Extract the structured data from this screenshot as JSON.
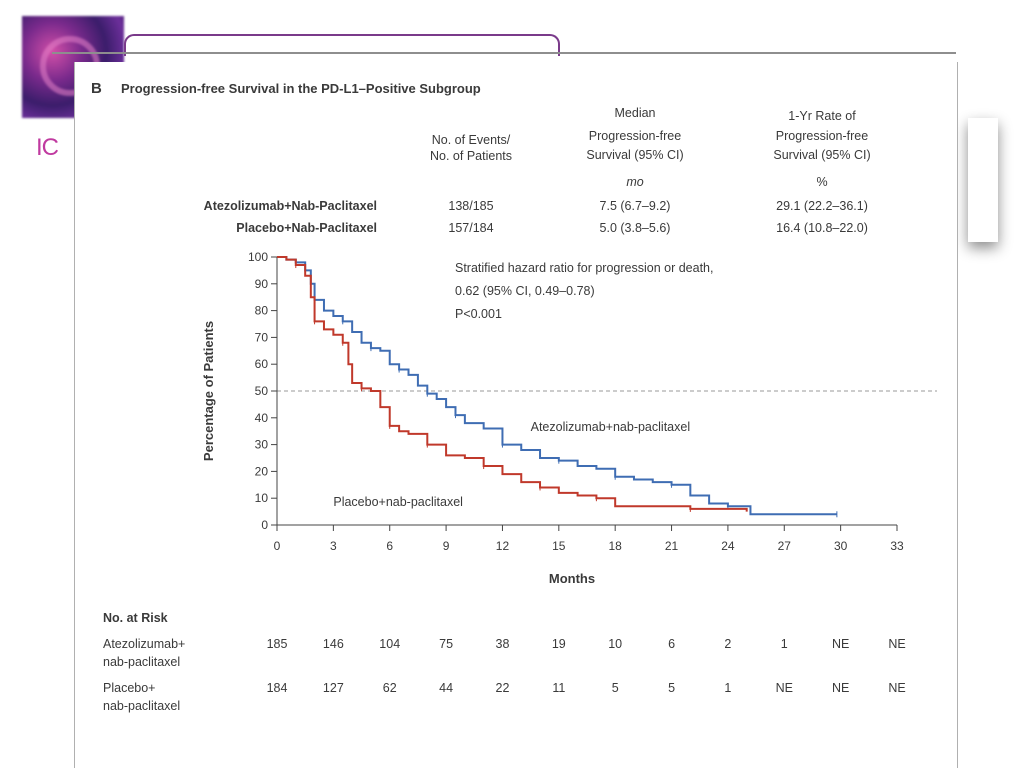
{
  "slide": {
    "side_fragment": "IC"
  },
  "figure": {
    "panel_letter": "B",
    "title": "Progression-free Survival in the PD-L1–Positive Subgroup",
    "header": {
      "col1_line1": "No. of Events/",
      "col1_line2": "No. of Patients",
      "col2_line1": "Median",
      "col2_line2": "Progression-free",
      "col2_line3": "Survival (95% CI)",
      "col2_unit": "mo",
      "col3_line1": "1-Yr Rate of",
      "col3_line2": "Progression-free",
      "col3_line3": "Survival (95% CI)",
      "col3_unit": "%"
    },
    "rows": [
      {
        "label": "Atezolizumab+Nab-Paclitaxel",
        "events": "138/185",
        "median": "7.5 (6.7–9.2)",
        "rate": "29.1 (22.2–36.1)"
      },
      {
        "label": "Placebo+Nab-Paclitaxel",
        "events": "157/184",
        "median": "5.0 (3.8–5.6)",
        "rate": "16.4 (10.8–22.0)"
      }
    ],
    "annotation": {
      "line1": "Stratified hazard ratio for progression or death,",
      "line2": "0.62 (95% CI, 0.49–0.78)",
      "line3": "P<0.001"
    },
    "risk": {
      "heading": "No. at Risk",
      "rows": [
        {
          "label_line1": "Atezolizumab+",
          "label_line2": "nab-paclitaxel",
          "values": [
            "185",
            "146",
            "104",
            "75",
            "38",
            "19",
            "10",
            "6",
            "2",
            "1",
            "NE",
            "NE"
          ]
        },
        {
          "label_line1": "Placebo+",
          "label_line2": "nab-paclitaxel",
          "values": [
            "184",
            "127",
            "62",
            "44",
            "22",
            "11",
            "5",
            "5",
            "1",
            "NE",
            "NE",
            "NE"
          ]
        }
      ]
    }
  },
  "chart_data": {
    "type": "line",
    "title": "",
    "xlabel": "Months",
    "ylabel": "Percentage of Patients",
    "xlim": [
      0,
      33
    ],
    "ylim": [
      0,
      100
    ],
    "xticks": [
      0,
      3,
      6,
      9,
      12,
      15,
      18,
      21,
      24,
      27,
      30,
      33
    ],
    "yticks": [
      0,
      10,
      20,
      30,
      40,
      50,
      60,
      70,
      80,
      90,
      100
    ],
    "reference_line": {
      "y": 50,
      "style": "dashed"
    },
    "series": [
      {
        "name": "Atezolizumab+nab-paclitaxel",
        "color": "#3f6db3",
        "label_at": [
          13.5,
          35
        ],
        "points": [
          [
            0,
            100
          ],
          [
            0.5,
            99
          ],
          [
            1,
            98
          ],
          [
            1.5,
            95
          ],
          [
            1.8,
            90
          ],
          [
            2,
            84
          ],
          [
            2.5,
            80
          ],
          [
            3,
            78
          ],
          [
            3.5,
            76
          ],
          [
            4,
            72
          ],
          [
            4.5,
            68
          ],
          [
            5,
            66
          ],
          [
            5.5,
            65
          ],
          [
            6,
            60
          ],
          [
            6.5,
            58
          ],
          [
            7,
            56
          ],
          [
            7.5,
            52
          ],
          [
            8,
            49
          ],
          [
            8.5,
            47
          ],
          [
            9,
            44
          ],
          [
            9.5,
            41
          ],
          [
            10,
            38
          ],
          [
            11,
            36
          ],
          [
            12,
            30
          ],
          [
            13,
            28
          ],
          [
            14,
            25
          ],
          [
            15,
            24
          ],
          [
            16,
            22
          ],
          [
            17,
            21
          ],
          [
            18,
            18
          ],
          [
            19,
            17
          ],
          [
            20,
            16
          ],
          [
            21,
            15
          ],
          [
            22,
            11
          ],
          [
            23,
            8
          ],
          [
            24,
            7
          ],
          [
            25,
            7
          ],
          [
            25.2,
            4
          ],
          [
            29.8,
            4
          ]
        ]
      },
      {
        "name": "Placebo+nab-paclitaxel",
        "color": "#c0392b",
        "label_at": [
          3,
          7
        ],
        "points": [
          [
            0,
            100
          ],
          [
            0.5,
            99
          ],
          [
            1,
            97
          ],
          [
            1.5,
            93
          ],
          [
            1.8,
            85
          ],
          [
            2,
            76
          ],
          [
            2.5,
            73
          ],
          [
            3,
            71
          ],
          [
            3.5,
            68
          ],
          [
            3.8,
            60
          ],
          [
            4,
            53
          ],
          [
            4.5,
            51
          ],
          [
            5,
            50
          ],
          [
            5.5,
            44
          ],
          [
            6,
            37
          ],
          [
            6.5,
            35
          ],
          [
            7,
            34
          ],
          [
            8,
            30
          ],
          [
            9,
            26
          ],
          [
            10,
            25
          ],
          [
            11,
            22
          ],
          [
            12,
            19
          ],
          [
            13,
            16
          ],
          [
            14,
            14
          ],
          [
            15,
            12
          ],
          [
            16,
            11
          ],
          [
            17,
            10
          ],
          [
            18,
            7
          ],
          [
            20,
            7
          ],
          [
            22,
            6
          ],
          [
            24,
            6
          ],
          [
            25,
            5
          ]
        ]
      }
    ]
  }
}
